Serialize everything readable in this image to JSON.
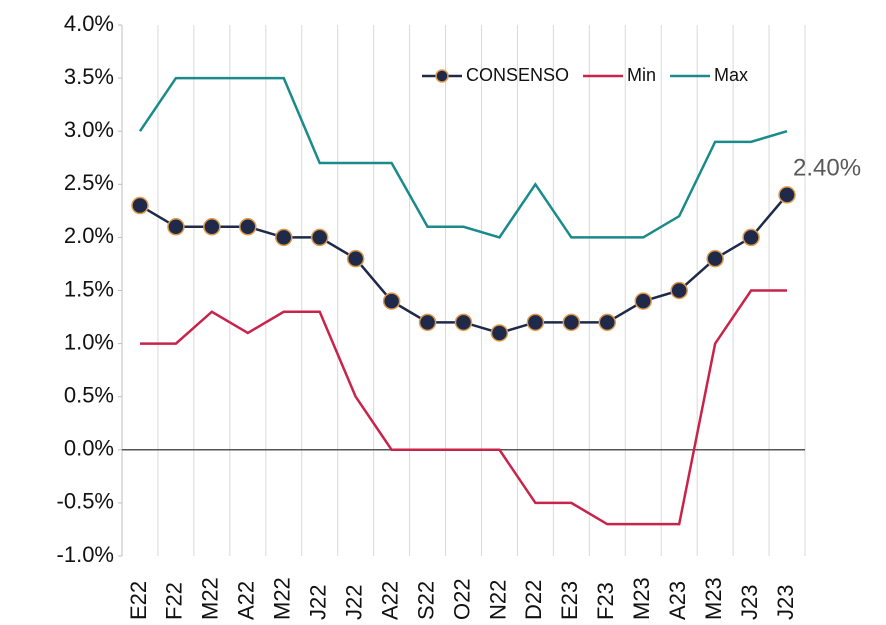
{
  "chart_data": {
    "type": "line",
    "categories": [
      "E22",
      "F22",
      "M22",
      "A22",
      "M22",
      "J22",
      "J22",
      "A22",
      "S22",
      "O22",
      "N22",
      "D22",
      "E23",
      "F23",
      "M23",
      "A23",
      "M23",
      "J23",
      "J23"
    ],
    "series": [
      {
        "name": "CONSENSO",
        "color": "#1f2a4a",
        "marker_edge": "#e09a4a",
        "markers": true,
        "values": [
          2.3,
          2.1,
          2.1,
          2.1,
          2.0,
          2.0,
          1.8,
          1.4,
          1.2,
          1.2,
          1.1,
          1.2,
          1.2,
          1.2,
          1.4,
          1.5,
          1.8,
          2.0,
          2.4
        ],
        "value_labels": [
          null,
          null,
          null,
          null,
          null,
          null,
          null,
          null,
          null,
          null,
          null,
          null,
          null,
          null,
          null,
          null,
          null,
          null,
          "2.40%"
        ]
      },
      {
        "name": "Min",
        "color": "#c8234a",
        "markers": false,
        "values": [
          1.0,
          1.0,
          1.3,
          1.1,
          1.3,
          1.3,
          0.5,
          0.0,
          0.0,
          0.0,
          0.0,
          -0.5,
          -0.5,
          -0.7,
          -0.7,
          -0.7,
          1.0,
          1.5,
          1.5
        ]
      },
      {
        "name": "Max",
        "color": "#1a8a8a",
        "markers": false,
        "values": [
          3.0,
          3.5,
          3.5,
          3.5,
          3.5,
          2.7,
          2.7,
          2.7,
          2.1,
          2.1,
          2.0,
          2.5,
          2.0,
          2.0,
          2.0,
          2.2,
          2.9,
          2.9,
          3.0
        ]
      }
    ],
    "ylim": [
      -1,
      4
    ],
    "yticks": [
      {
        "value": -1,
        "label": "-1.0%"
      },
      {
        "value": -0.5,
        "label": "-0.5%"
      },
      {
        "value": 0,
        "label": "0.0%"
      },
      {
        "value": 0.5,
        "label": "0.5%"
      },
      {
        "value": 1,
        "label": "1.0%"
      },
      {
        "value": 1.5,
        "label": "1.5%"
      },
      {
        "value": 2,
        "label": "2.0%"
      },
      {
        "value": 2.5,
        "label": "2.5%"
      },
      {
        "value": 3,
        "label": "3.0%"
      },
      {
        "value": 3.5,
        "label": "3.5%"
      },
      {
        "value": 4,
        "label": "4.0%"
      }
    ],
    "grid": "x",
    "legend": "top-right"
  }
}
